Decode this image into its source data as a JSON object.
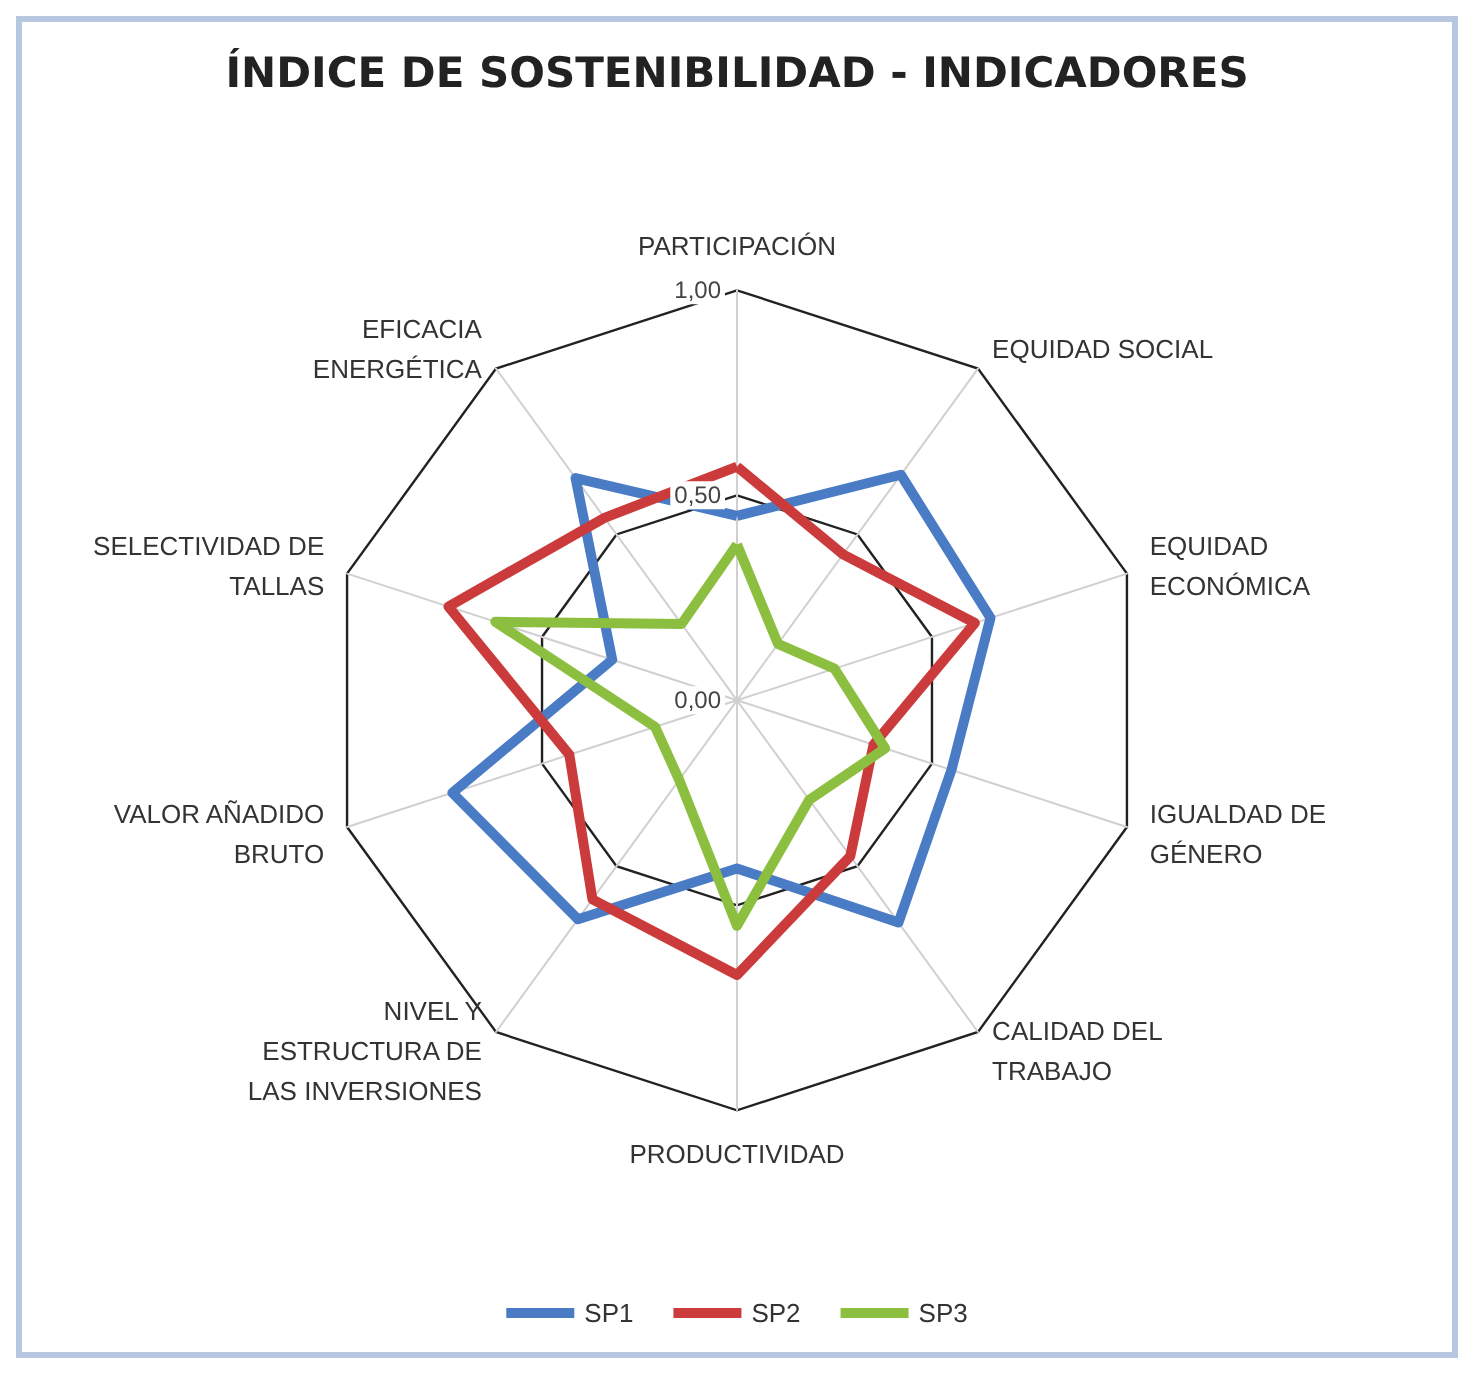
{
  "chart_data": {
    "type": "radar",
    "title": "ÍNDICE DE SOSTENIBILIDAD - INDICADORES",
    "categories": [
      "PARTICIPACIÓN",
      "EQUIDAD SOCIAL",
      "EQUIDAD ECONÓMICA",
      "IGUALDAD DE GÉNERO",
      "CALIDAD DEL TRABAJO",
      "PRODUCTIVIDAD",
      "NIVEL Y ESTRUCTURA DE LAS INVERSIONES",
      "VALOR AÑADIDO BRUTO",
      "SELECTIVIDAD DE TALLAS",
      "EFICACIA ENERGÉTICA"
    ],
    "series": [
      {
        "name": "SP1",
        "color": "#4a7cc6",
        "values": [
          0.45,
          0.68,
          0.65,
          0.55,
          0.67,
          0.41,
          0.66,
          0.73,
          0.32,
          0.67
        ]
      },
      {
        "name": "SP2",
        "color": "#cc3b3b",
        "values": [
          0.57,
          0.44,
          0.61,
          0.35,
          0.47,
          0.67,
          0.6,
          0.43,
          0.74,
          0.55
        ]
      },
      {
        "name": "SP3",
        "color": "#8cbf40",
        "values": [
          0.38,
          0.17,
          0.25,
          0.38,
          0.3,
          0.55,
          0.24,
          0.21,
          0.62,
          0.23
        ]
      }
    ],
    "ylim": [
      0,
      1
    ],
    "yticks": [
      {
        "value": 0,
        "label": "0,00"
      },
      {
        "value": 0.5,
        "label": "0,50"
      },
      {
        "value": 1,
        "label": "1,00"
      }
    ],
    "legend": "bottom",
    "marker": "none",
    "line_style": "solid"
  }
}
